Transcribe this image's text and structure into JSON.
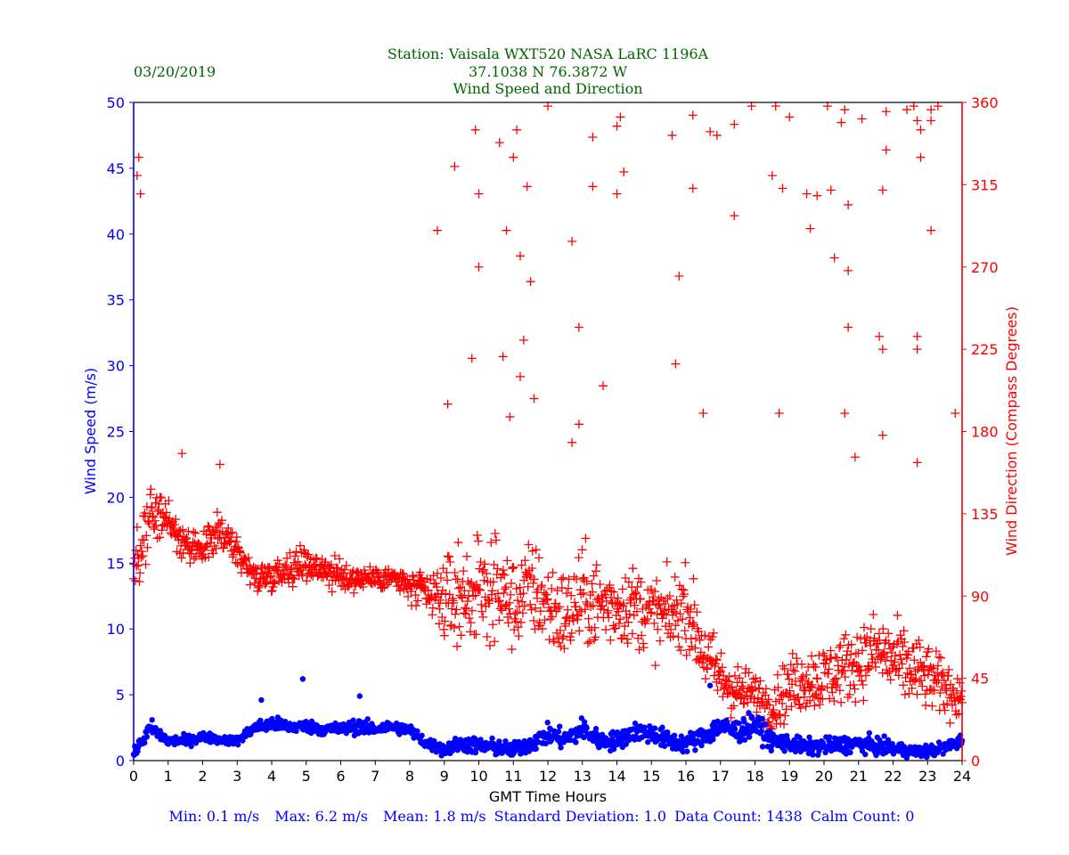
{
  "chart_data": {
    "type": "scatter",
    "date": "03/20/2019",
    "title_lines": [
      "Station:  Vaisala WXT520  NASA LaRC 1196A",
      "37.1038 N 76.3872 W",
      "Wind Speed and Direction"
    ],
    "xlabel": "GMT Time Hours",
    "ylabel_left": "Wind Speed (m/s)",
    "ylabel_right": "Wind Direction (Compass Degrees)",
    "xlim": [
      0,
      24
    ],
    "ylim_left": [
      0,
      50
    ],
    "ylim_right": [
      0,
      360
    ],
    "x_ticks": [
      "0",
      "1",
      "2",
      "3",
      "4",
      "5",
      "6",
      "7",
      "8",
      "9",
      "10",
      "11",
      "12",
      "13",
      "14",
      "15",
      "16",
      "17",
      "18",
      "19",
      "20",
      "21",
      "22",
      "23",
      "24"
    ],
    "y_ticks_left": [
      "0",
      "5",
      "10",
      "15",
      "20",
      "25",
      "30",
      "35",
      "40",
      "45",
      "50"
    ],
    "y_ticks_right": [
      "0",
      "45",
      "90",
      "135",
      "180",
      "225",
      "270",
      "315",
      "360"
    ],
    "stats": {
      "min": "Min: 0.1 m/s",
      "max": "Max: 6.2 m/s",
      "mean": "Mean: 1.8 m/s",
      "std": "Standard Deviation: 1.0",
      "count": "Data Count: 1438",
      "calm": "Calm Count:  0"
    },
    "speed_profile": {
      "name": "Wind Speed (m/s)",
      "x": [
        0,
        0.5,
        1,
        1.5,
        2,
        2.5,
        3,
        3.5,
        4,
        4.5,
        5,
        5.5,
        6,
        6.5,
        7,
        7.5,
        8,
        8.5,
        9,
        9.5,
        10,
        10.5,
        11,
        11.5,
        12,
        12.5,
        13,
        13.5,
        14,
        14.5,
        15,
        15.5,
        16,
        16.5,
        17,
        17.5,
        18,
        18.5,
        19,
        19.5,
        20,
        20.5,
        21,
        21.5,
        22,
        22.5,
        23,
        23.5,
        24
      ],
      "y": [
        0.5,
        2.5,
        1.5,
        1.5,
        1.8,
        1.6,
        1.5,
        2.5,
        2.8,
        2.6,
        2.6,
        2.4,
        2.4,
        2.6,
        2.4,
        2.6,
        2.3,
        1.3,
        0.8,
        1.3,
        1.1,
        1.0,
        0.8,
        1.3,
        2.0,
        1.6,
        2.4,
        1.5,
        1.5,
        2.2,
        2.1,
        1.5,
        1.3,
        1.8,
        2.6,
        2.2,
        2.8,
        1.5,
        1.3,
        1.0,
        1.1,
        1.2,
        1.3,
        1.1,
        0.9,
        0.7,
        0.7,
        1.0,
        1.5
      ],
      "spread": [
        0.4,
        0.8,
        0.5,
        0.5,
        0.5,
        0.4,
        0.4,
        0.6,
        0.7,
        0.6,
        0.6,
        0.6,
        0.6,
        0.7,
        0.6,
        0.6,
        0.6,
        0.6,
        0.6,
        0.8,
        0.8,
        0.8,
        0.7,
        0.9,
        0.9,
        1.0,
        1.1,
        0.9,
        0.9,
        0.9,
        1.0,
        0.9,
        0.9,
        1.0,
        1.1,
        1.1,
        1.1,
        0.9,
        0.8,
        0.8,
        0.8,
        0.8,
        0.9,
        0.8,
        0.7,
        0.6,
        0.6,
        0.6,
        0.7
      ]
    },
    "direction_profile": {
      "name": "Wind Direction (Compass Degrees)",
      "x": [
        0,
        0.5,
        1,
        1.5,
        2,
        2.5,
        3,
        3.5,
        4,
        4.5,
        5,
        5.5,
        6,
        6.5,
        7,
        7.5,
        8,
        8.5,
        9,
        9.5,
        10,
        10.5,
        11,
        11.5,
        12,
        12.5,
        13,
        13.5,
        14,
        14.5,
        15,
        15.5,
        16,
        16.5,
        17,
        17.5,
        18,
        18.5,
        19,
        19.5,
        20,
        20.5,
        21,
        21.5,
        22,
        22.5,
        23,
        23.5,
        24
      ],
      "y": [
        100,
        135,
        132,
        115,
        115,
        125,
        115,
        100,
        102,
        105,
        108,
        105,
        100,
        100,
        100,
        100,
        95,
        90,
        88,
        90,
        92,
        95,
        85,
        95,
        85,
        78,
        90,
        85,
        85,
        85,
        80,
        78,
        85,
        60,
        45,
        38,
        35,
        30,
        40,
        45,
        45,
        50,
        55,
        60,
        55,
        50,
        45,
        40,
        35
      ],
      "spread": [
        30,
        15,
        10,
        10,
        10,
        12,
        10,
        10,
        10,
        10,
        10,
        10,
        10,
        8,
        8,
        8,
        10,
        15,
        25,
        30,
        30,
        30,
        30,
        30,
        30,
        30,
        30,
        30,
        25,
        25,
        25,
        25,
        25,
        25,
        20,
        18,
        15,
        15,
        20,
        20,
        22,
        22,
        22,
        25,
        25,
        25,
        20,
        18,
        15
      ],
      "outliers": [
        [
          0.15,
          330
        ],
        [
          0.2,
          310
        ],
        [
          0.1,
          320
        ],
        [
          1.4,
          168
        ],
        [
          2.5,
          162
        ],
        [
          8.8,
          290
        ],
        [
          9.1,
          195
        ],
        [
          9.3,
          325
        ],
        [
          9.8,
          220
        ],
        [
          9.9,
          345
        ],
        [
          10.0,
          310
        ],
        [
          10.0,
          270
        ],
        [
          10.6,
          338
        ],
        [
          10.7,
          221
        ],
        [
          10.8,
          290
        ],
        [
          10.9,
          188
        ],
        [
          11.0,
          330
        ],
        [
          11.1,
          345
        ],
        [
          11.2,
          210
        ],
        [
          11.2,
          276
        ],
        [
          11.3,
          230
        ],
        [
          11.4,
          314
        ],
        [
          11.5,
          262
        ],
        [
          11.6,
          198
        ],
        [
          12.0,
          358
        ],
        [
          12.7,
          284
        ],
        [
          12.7,
          174
        ],
        [
          12.9,
          237
        ],
        [
          12.9,
          184
        ],
        [
          13.3,
          341
        ],
        [
          13.3,
          314
        ],
        [
          13.6,
          205
        ],
        [
          14.0,
          347
        ],
        [
          14.1,
          352
        ],
        [
          14.0,
          310
        ],
        [
          14.2,
          322
        ],
        [
          15.6,
          342
        ],
        [
          15.8,
          265
        ],
        [
          15.7,
          217
        ],
        [
          16.2,
          353
        ],
        [
          16.2,
          313
        ],
        [
          16.5,
          190
        ],
        [
          16.7,
          344
        ],
        [
          16.9,
          342
        ],
        [
          17.4,
          348
        ],
        [
          17.4,
          298
        ],
        [
          17.9,
          358
        ],
        [
          18.5,
          320
        ],
        [
          18.6,
          358
        ],
        [
          18.7,
          190
        ],
        [
          18.8,
          313
        ],
        [
          19.0,
          352
        ],
        [
          19.5,
          310
        ],
        [
          19.6,
          291
        ],
        [
          19.8,
          309
        ],
        [
          20.1,
          358
        ],
        [
          20.2,
          312
        ],
        [
          20.3,
          275
        ],
        [
          20.5,
          349
        ],
        [
          20.6,
          356
        ],
        [
          20.6,
          190
        ],
        [
          20.7,
          304
        ],
        [
          20.7,
          268
        ],
        [
          20.7,
          237
        ],
        [
          20.9,
          166
        ],
        [
          21.1,
          351
        ],
        [
          21.6,
          232
        ],
        [
          21.7,
          225
        ],
        [
          21.7,
          178
        ],
        [
          21.7,
          312
        ],
        [
          21.8,
          334
        ],
        [
          21.8,
          355
        ],
        [
          22.4,
          356
        ],
        [
          22.6,
          358
        ],
        [
          22.7,
          350
        ],
        [
          22.7,
          225
        ],
        [
          22.7,
          232
        ],
        [
          22.8,
          345
        ],
        [
          22.8,
          330
        ],
        [
          22.7,
          163
        ],
        [
          23.1,
          350
        ],
        [
          23.1,
          356
        ],
        [
          23.1,
          290
        ],
        [
          23.3,
          358
        ],
        [
          23.8,
          190
        ]
      ]
    }
  }
}
